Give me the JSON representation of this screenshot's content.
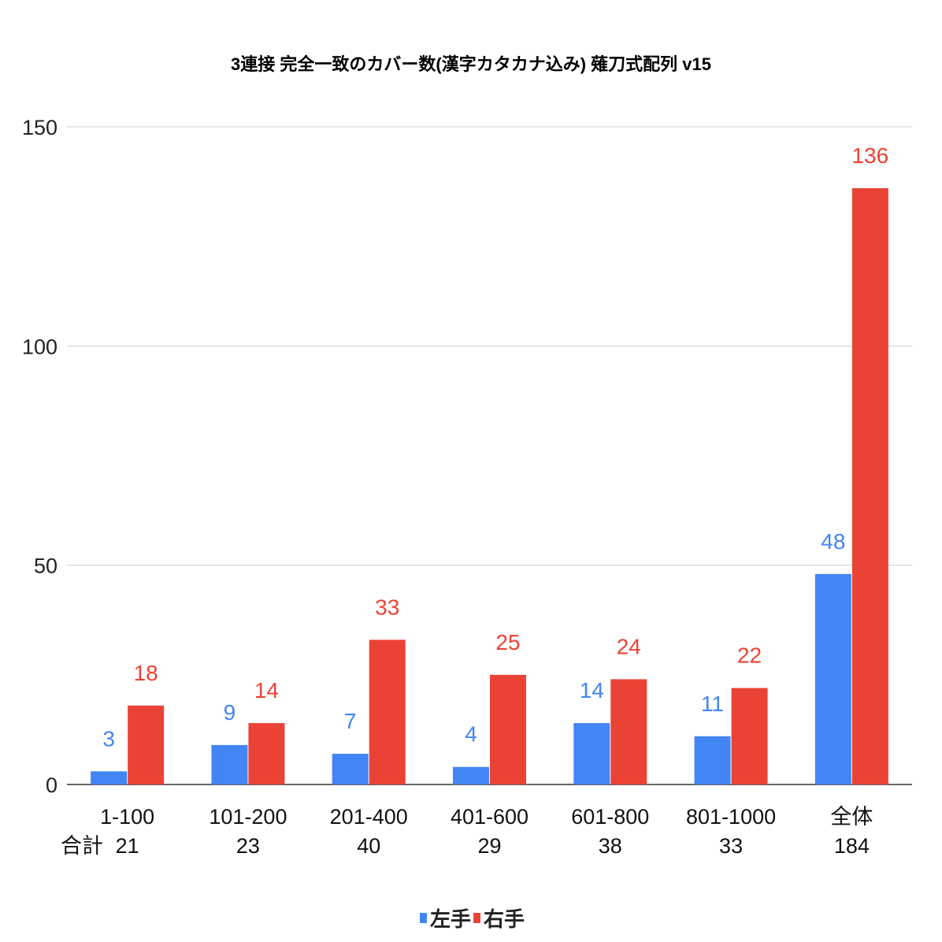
{
  "chart_data": {
    "type": "bar",
    "title": "3連接 完全一致のカバー数(漢字カタカナ込み) 薙刀式配列 v15",
    "xlabel": "",
    "ylabel": "",
    "ylim": [
      0,
      150
    ],
    "yticks": [
      0,
      50,
      100,
      150
    ],
    "grid": true,
    "legend_position": "bottom",
    "categories": [
      "1-100",
      "101-200",
      "201-400",
      "401-600",
      "601-800",
      "801-1000",
      "全体"
    ],
    "totals_label": "合計",
    "totals": [
      "21",
      "23",
      "40",
      "29",
      "38",
      "33",
      "184"
    ],
    "series": [
      {
        "name": "左手",
        "color": "#4285f4",
        "values": [
          3,
          9,
          7,
          4,
          14,
          11,
          48
        ]
      },
      {
        "name": "右手",
        "color": "#ea4335",
        "values": [
          18,
          14,
          33,
          25,
          24,
          22,
          136
        ]
      }
    ]
  }
}
